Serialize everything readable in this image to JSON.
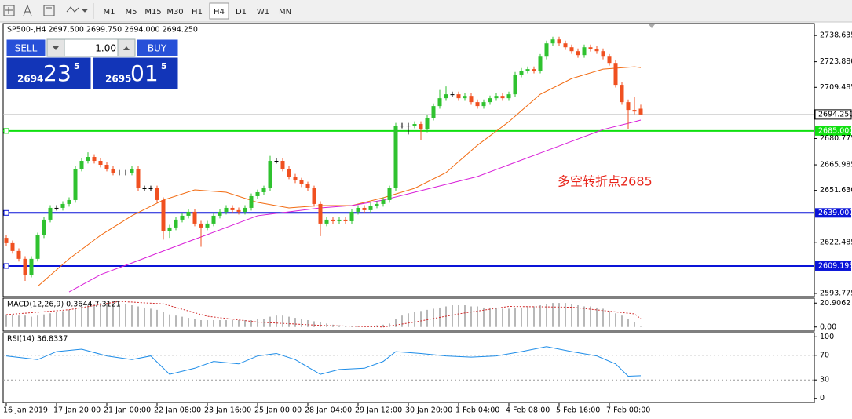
{
  "toolbar": {
    "timeframes": [
      "M1",
      "M5",
      "M15",
      "M30",
      "H1",
      "H4",
      "D1",
      "W1",
      "MN"
    ],
    "active": "H4"
  },
  "trade_panel": {
    "sell": "SELL",
    "volume": "1.00",
    "buy": "BUY",
    "bid_big": "2694",
    "bid_pips": "23",
    "bid_frac": "5",
    "ask_big": "2695",
    "ask_pips": "01",
    "ask_frac": "5"
  },
  "chart_data": [
    {
      "type": "candlestick",
      "title": "SP500-,H4  2697.500 2699.750 2694.000 2694.250",
      "up_color": "#2fc22f",
      "down_color": "#f05020",
      "categories": [
        "16 Jan 2019",
        null,
        null,
        null,
        null,
        null,
        null,
        null,
        "17 Jan 20:00",
        null,
        null,
        null,
        null,
        null,
        null,
        null,
        "21 Jan 00:00",
        null,
        null,
        null,
        null,
        null,
        null,
        null,
        "22 Jan 08:00",
        null,
        null,
        null,
        null,
        null,
        null,
        null,
        "23 Jan 16:00",
        null,
        null,
        null,
        null,
        null,
        null,
        null,
        "25 Jan 00:00",
        null,
        null,
        null,
        null,
        null,
        null,
        null,
        "28 Jan 04:00",
        null,
        null,
        null,
        null,
        null,
        null,
        null,
        "29 Jan 12:00",
        null,
        null,
        null,
        null,
        null,
        null,
        null,
        "30 Jan 20:00",
        null,
        null,
        null,
        null,
        null,
        null,
        null,
        "1 Feb 04:00",
        null,
        null,
        null,
        null,
        null,
        null,
        null,
        "4 Feb 08:00",
        null,
        null,
        null,
        null,
        null,
        null,
        null,
        "5 Feb 16:00",
        null,
        null,
        null,
        null,
        null,
        null,
        null,
        "7 Feb 00:00",
        null,
        null,
        null,
        null,
        null
      ],
      "open": [
        2625,
        2622,
        2617.6,
        2613.2,
        2604.3,
        2613.2,
        2626.4,
        2635.2,
        2641.8,
        2641.8,
        2644,
        2646.2,
        2663.8,
        2668.2,
        2670.4,
        2668.2,
        2666,
        2663.8,
        2661.6,
        2661.6,
        2661.6,
        2663.8,
        2652.8,
        2652.8,
        2652.8,
        2646.2,
        2628.6,
        2630.8,
        2635.2,
        2637.4,
        2639.6,
        2633,
        2630.8,
        2633,
        2637.4,
        2639.6,
        2641.8,
        2640.5,
        2639.6,
        2641.8,
        2648.4,
        2650.6,
        2652.8,
        2668.2,
        2668.2,
        2663.8,
        2659.4,
        2657.2,
        2655,
        2652.8,
        2644,
        2633,
        2635.2,
        2634.3,
        2635.2,
        2634.3,
        2639.6,
        2641.8,
        2640.5,
        2643.1,
        2644,
        2646.2,
        2652.8,
        2688,
        2688,
        2688,
        2688.9,
        2685.8,
        2692.4,
        2699,
        2703.4,
        2705.6,
        2705.6,
        2703.4,
        2704.7,
        2701.2,
        2699,
        2701.2,
        2703.4,
        2704.7,
        2703.4,
        2705.6,
        2716.6,
        2718.8,
        2719.7,
        2718.8,
        2726.7,
        2734.2,
        2736.4,
        2734.2,
        2732,
        2729.8,
        2727.6,
        2732,
        2731.1,
        2729.8,
        2726.7,
        2723.2,
        2710.9,
        2701.2,
        2696.8,
        2697.5
      ],
      "high": [
        2626.5,
        2623.5,
        2619.1,
        2614.7,
        2614.7,
        2627.9,
        2636.7,
        2643.3,
        2643.3,
        2645.5,
        2647.7,
        2665.3,
        2669.7,
        2673,
        2671.9,
        2669.7,
        2667.5,
        2665.3,
        2663.1,
        2663.1,
        2665.3,
        2665.3,
        2654.3,
        2654.3,
        2654.3,
        2647.7,
        2632.3,
        2636.7,
        2638.9,
        2641.1,
        2641.1,
        2634.5,
        2634.5,
        2638.9,
        2641.1,
        2643.3,
        2643.3,
        2642,
        2643.3,
        2649.9,
        2652.1,
        2654.3,
        2671,
        2669.7,
        2669.7,
        2665.3,
        2660.9,
        2658.7,
        2656.5,
        2654.3,
        2645.5,
        2636.7,
        2636.7,
        2636.7,
        2636.7,
        2641.1,
        2643.3,
        2643.3,
        2644.6,
        2645.5,
        2647.7,
        2654.3,
        2689.5,
        2689.5,
        2689.5,
        2690.4,
        2690.4,
        2693.9,
        2700.5,
        2708,
        2710,
        2707.1,
        2707.1,
        2706.2,
        2706.2,
        2702.7,
        2702.7,
        2704.9,
        2706.2,
        2706.2,
        2707.1,
        2718.1,
        2720.3,
        2721.2,
        2721.2,
        2728.2,
        2735.7,
        2737.9,
        2737.9,
        2735.7,
        2733.5,
        2731.3,
        2733.5,
        2733.5,
        2732.6,
        2731.3,
        2728.2,
        2724.7,
        2712.4,
        2702.7,
        2704,
        2699.75
      ],
      "low": [
        2620.5,
        2616.1,
        2611.7,
        2600.8,
        2602.8,
        2611.7,
        2624.9,
        2633.7,
        2640.3,
        2640.3,
        2642.5,
        2644.7,
        2662.3,
        2666.7,
        2666.7,
        2664.5,
        2662.3,
        2660.1,
        2660.1,
        2660.1,
        2660.1,
        2651.3,
        2651.3,
        2651.3,
        2644.7,
        2624,
        2625,
        2629.3,
        2633.7,
        2635.9,
        2631.5,
        2620,
        2629.3,
        2631.5,
        2635.9,
        2638.1,
        2639,
        2638.1,
        2638.1,
        2640.3,
        2646.9,
        2649.1,
        2651.3,
        2666.7,
        2662.3,
        2657.9,
        2655.7,
        2653.5,
        2651.3,
        2642.5,
        2626,
        2631.5,
        2632.8,
        2632.8,
        2632.8,
        2632.8,
        2638.1,
        2639,
        2639,
        2641.6,
        2642.5,
        2644.7,
        2651.3,
        2686.5,
        2683,
        2686.5,
        2680,
        2684.3,
        2690.9,
        2697.5,
        2701.9,
        2704.1,
        2701.9,
        2701.9,
        2699.7,
        2697.5,
        2697.5,
        2699.7,
        2701.9,
        2701.9,
        2701.9,
        2704.1,
        2715.1,
        2717.3,
        2717.3,
        2717.3,
        2725.2,
        2732.7,
        2732.7,
        2730.5,
        2728.3,
        2726.1,
        2726.1,
        2729.6,
        2728.3,
        2725.2,
        2721.7,
        2709.4,
        2699.7,
        2686,
        2694.4,
        2694
      ],
      "close": [
        2622,
        2617.6,
        2613.2,
        2604.3,
        2613.2,
        2626.4,
        2635.2,
        2641.8,
        2641.8,
        2644,
        2646.2,
        2663.8,
        2668.2,
        2670.4,
        2668.2,
        2666,
        2663.8,
        2661.6,
        2661.6,
        2661.6,
        2663.8,
        2652.8,
        2652.8,
        2652.8,
        2646.2,
        2628.6,
        2630.8,
        2635.2,
        2637.4,
        2639.6,
        2633,
        2630.8,
        2633,
        2637.4,
        2639.6,
        2641.8,
        2640.5,
        2639.6,
        2641.8,
        2648.4,
        2650.6,
        2652.8,
        2668.2,
        2668.2,
        2663.8,
        2659.4,
        2657.2,
        2655,
        2652.8,
        2644,
        2633,
        2635.2,
        2634.3,
        2635.2,
        2634.3,
        2639.6,
        2641.8,
        2640.5,
        2643.1,
        2644,
        2646.2,
        2652.8,
        2688,
        2688,
        2688,
        2688.9,
        2685.8,
        2692.4,
        2699,
        2703.4,
        2705.6,
        2705.6,
        2703.4,
        2704.7,
        2701.2,
        2699,
        2701.2,
        2703.4,
        2704.7,
        2703.4,
        2705.6,
        2716.6,
        2718.8,
        2719.7,
        2718.8,
        2726.7,
        2734.2,
        2736.4,
        2734.2,
        2732,
        2729.8,
        2727.6,
        2732,
        2731.1,
        2729.8,
        2726.7,
        2723.2,
        2710.9,
        2701.2,
        2696.8,
        2695.9,
        2694.25
      ],
      "lines": [
        {
          "color": "#f26a10",
          "x": [
            5,
            10,
            15,
            20,
            25,
            30,
            35,
            40,
            45,
            50,
            55,
            60,
            65,
            70,
            75,
            80,
            85,
            90,
            95,
            100,
            101
          ],
          "values": [
            2597.7,
            2613.2,
            2626.4,
            2637.4,
            2646.2,
            2651.9,
            2650.6,
            2644.9,
            2641.8,
            2643.1,
            2643.1,
            2647.5,
            2652.8,
            2661.6,
            2677,
            2690.2,
            2705.6,
            2714.4,
            2719.7,
            2721,
            2720.6
          ]
        },
        {
          "color": "#d81ed8",
          "x": [
            10,
            15,
            20,
            25,
            30,
            35,
            40,
            45,
            50,
            55,
            60,
            65,
            70,
            75,
            80,
            85,
            90,
            95,
            100,
            101
          ],
          "values": [
            2594.6,
            2604.3,
            2610.9,
            2617.6,
            2624.2,
            2630.8,
            2637.4,
            2639.6,
            2641.8,
            2643.1,
            2646.2,
            2650.6,
            2655,
            2659.4,
            2666,
            2672.6,
            2679.2,
            2685.8,
            2690.2,
            2691.1
          ]
        }
      ],
      "levels": [
        {
          "value": 2685,
          "label": "2685.000",
          "color": "#10e010"
        },
        {
          "value": 2639,
          "label": "2639.000",
          "color": "#0a14d8"
        },
        {
          "value": 2609.193,
          "label": "2609.193",
          "color": "#0a14d8"
        }
      ],
      "current_price": {
        "value": 2694.25,
        "label": "2694.250"
      },
      "annotation": "多空转折点2685",
      "ylim": [
        2592,
        2745.3
      ],
      "yticks": [
        2738.635,
        {
          "value": 2723.88,
          "label": "2723.880"
        },
        2709.485,
        2680.775,
        2665.985,
        {
          "value": 2651.63,
          "label": "2651.630"
        },
        2622.485,
        2593.775
      ]
    },
    {
      "type": "bar",
      "title": "MACD(12,26,9) 0.3644 7.3121",
      "color": "#b8b8b8",
      "values": [
        11,
        11,
        10,
        10,
        9,
        10,
        11,
        12,
        13,
        14,
        15,
        17,
        18,
        19,
        20,
        21,
        21,
        21,
        20,
        20,
        19,
        18,
        17,
        16,
        15,
        13,
        11,
        10,
        9,
        8,
        7,
        6,
        6,
        6,
        6,
        6,
        6,
        6,
        6,
        6,
        7,
        7,
        9,
        10,
        10,
        9,
        8,
        7,
        6,
        5,
        4,
        3,
        2,
        1.5,
        1,
        1,
        1,
        1,
        1,
        1.5,
        2,
        3,
        7,
        10,
        12,
        13,
        14,
        15,
        16,
        17,
        18,
        19,
        19,
        19,
        18,
        18,
        17,
        17,
        17,
        16,
        16,
        17,
        17,
        18,
        18,
        19,
        20,
        21,
        21,
        21,
        20,
        19,
        18,
        18,
        17,
        16,
        14,
        12,
        10,
        7,
        4,
        0.3644
      ],
      "signal": {
        "color": "#d02a2a",
        "x": [
          0,
          10,
          18,
          25,
          32,
          40,
          50,
          60,
          65,
          72,
          80,
          90,
          100,
          101
        ],
        "values": [
          10.8,
          15.1,
          22.4,
          20.2,
          9.4,
          4.3,
          1.4,
          0,
          4.3,
          11.5,
          18,
          17.3,
          11.5,
          7.3121
        ]
      },
      "ylim": [
        -3.6,
        25.2
      ],
      "yticks": [
        20.9062,
        {
          "value": 0,
          "label": "0.00"
        }
      ]
    },
    {
      "type": "line",
      "title": "RSI(14) 36.8337",
      "color": "#1c8ce8",
      "x": [
        0,
        5,
        8,
        12,
        16,
        20,
        23,
        26,
        30,
        33,
        37,
        40,
        43,
        46,
        50,
        53,
        57,
        60,
        62,
        66,
        70,
        74,
        78,
        82,
        86,
        90,
        94,
        97,
        99,
        101
      ],
      "values": [
        69,
        63,
        76,
        80,
        69,
        63,
        69,
        39,
        49,
        60,
        56,
        69,
        73,
        63,
        39,
        47,
        49,
        60,
        76,
        73,
        69,
        67,
        69,
        76,
        84,
        76,
        69,
        56,
        36,
        36.8337
      ],
      "ylim": [
        -6.7,
        106.7
      ],
      "yticks": [
        100,
        70,
        30,
        0
      ],
      "grid": true
    }
  ]
}
